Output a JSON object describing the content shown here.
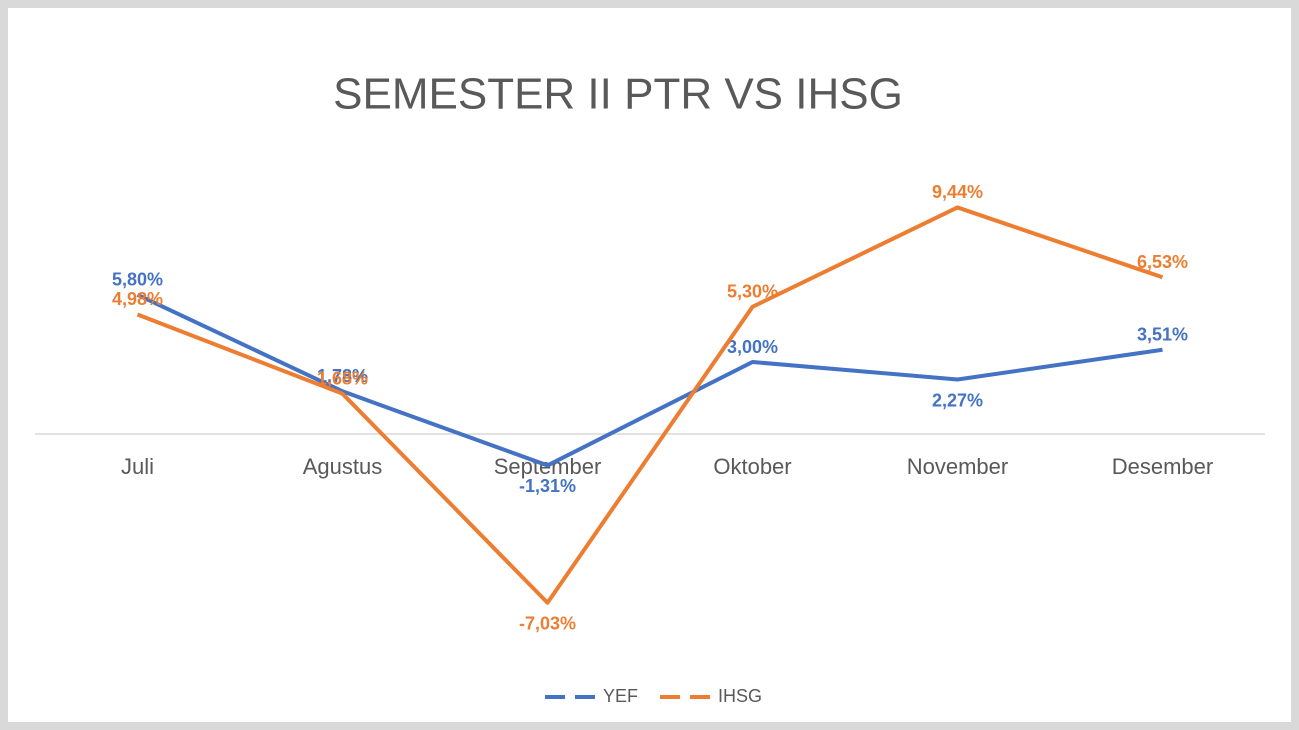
{
  "chart_data": {
    "type": "line",
    "title": "SEMESTER II PTR VS IHSG",
    "categories": [
      "Juli",
      "Agustus",
      "September",
      "Oktober",
      "November",
      "Desember"
    ],
    "series": [
      {
        "name": "YEF",
        "color": "#4472c4",
        "values": [
          5.8,
          1.78,
          -1.31,
          3.0,
          2.27,
          3.51
        ],
        "value_labels": [
          "5,80%",
          "1,78%",
          "-1,31%",
          "3,00%",
          "2,27%",
          "3,51%"
        ]
      },
      {
        "name": "IHSG",
        "color": "#ed7d31",
        "values": [
          4.98,
          1.68,
          -7.03,
          5.3,
          9.44,
          6.53
        ],
        "value_labels": [
          "4,98%",
          "1,68%",
          "-7,03%",
          "5,30%",
          "9,44%",
          "6,53%"
        ]
      }
    ],
    "ylim": [
      -8,
      10
    ],
    "legend": "bottom"
  }
}
